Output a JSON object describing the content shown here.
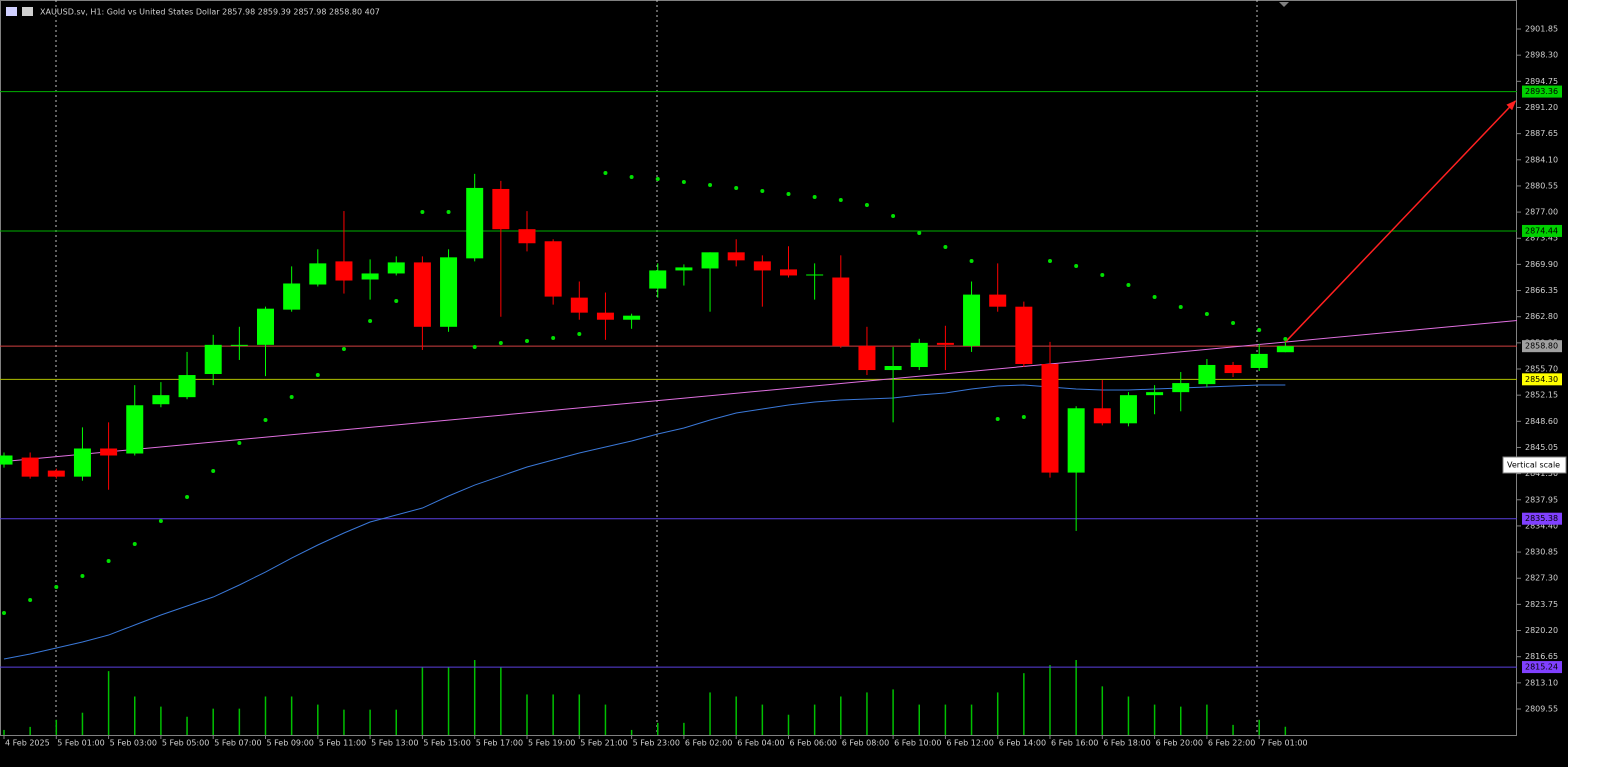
{
  "chart_data": {
    "type": "candlestick",
    "header": "XAUUSD.sv, H1:  Gold vs United States Dollar  2857.98 2859.39 2857.98 2858.80  407",
    "tooltip": "Vertical scale",
    "categories": [
      "4 Feb 2025",
      null,
      "5 Feb 01:00",
      null,
      "5 Feb 03:00",
      null,
      "5 Feb 05:00",
      null,
      "5 Feb 07:00",
      null,
      "5 Feb 09:00",
      null,
      "5 Feb 11:00",
      null,
      "5 Feb 13:00",
      null,
      "5 Feb 15:00",
      null,
      "5 Feb 17:00",
      null,
      "5 Feb 19:00",
      null,
      "5 Feb 21:00",
      null,
      "5 Feb 23:00",
      null,
      "6 Feb 02:00",
      null,
      "6 Feb 04:00",
      null,
      "6 Feb 06:00",
      null,
      "6 Feb 08:00",
      null,
      "6 Feb 10:00",
      null,
      "6 Feb 12:00",
      null,
      "6 Feb 14:00",
      null,
      "6 Feb 16:00",
      null,
      "6 Feb 18:00",
      null,
      "6 Feb 20:00",
      null,
      "6 Feb 22:00",
      null,
      "7 Feb 01:00",
      null
    ],
    "open": [
      2842.73,
      2843.68,
      2841.91,
      2841.09,
      2844.91,
      2844.23,
      2850.92,
      2851.88,
      2855.02,
      2858.98,
      2858.98,
      2863.76,
      2867.17,
      2870.31,
      2867.85,
      2868.67,
      2870.17,
      2861.43,
      2870.72,
      2880.14,
      2874.68,
      2873.04,
      2865.39,
      2863.35,
      2862.39,
      2866.62,
      2869.08,
      2869.35,
      2871.54,
      2870.31,
      2869.22,
      2868.53,
      2868.12,
      2858.84,
      2855.56,
      2855.97,
      2859.25,
      2858.84,
      2865.8,
      2864.16,
      2856.38,
      2841.64,
      2850.37,
      2848.33,
      2852.15,
      2852.56,
      2853.65,
      2856.25,
      2855.84,
      2857.98
    ],
    "high": [
      2844.37,
      2844.37,
      2842.18,
      2847.78,
      2848.46,
      2853.51,
      2853.92,
      2858.02,
      2860.34,
      2861.43,
      2864.16,
      2869.63,
      2871.95,
      2877.14,
      2870.58,
      2870.99,
      2870.99,
      2871.95,
      2882.19,
      2881.23,
      2877.14,
      2873.31,
      2867.58,
      2866.08,
      2863.21,
      2870.04,
      2869.9,
      2871.54,
      2873.31,
      2871.13,
      2872.36,
      2870.04,
      2871.13,
      2861.43,
      2858.7,
      2859.8,
      2861.57,
      2867.58,
      2870.04,
      2864.85,
      2859.39,
      2850.65,
      2854.2,
      2852.56,
      2853.51,
      2855.29,
      2857.06,
      2856.66,
      2859.11,
      2859.39
    ],
    "low": [
      2842.32,
      2840.82,
      2840.82,
      2840.54,
      2839.31,
      2843.96,
      2850.51,
      2851.6,
      2853.51,
      2856.93,
      2854.74,
      2863.48,
      2866.9,
      2865.94,
      2865.12,
      2868.4,
      2858.29,
      2860.75,
      2870.31,
      2862.8,
      2871.67,
      2864.44,
      2862.39,
      2859.66,
      2861.16,
      2865.39,
      2867.03,
      2863.48,
      2869.63,
      2864.16,
      2868.12,
      2865.12,
      2858.57,
      2854.88,
      2848.46,
      2855.56,
      2855.56,
      2858.02,
      2863.48,
      2855.97,
      2840.95,
      2833.72,
      2848.05,
      2847.92,
      2849.56,
      2849.96,
      2853.24,
      2854.61,
      2855.43,
      2857.98
    ],
    "close": [
      2843.96,
      2841.09,
      2841.09,
      2844.91,
      2843.96,
      2850.78,
      2852.15,
      2854.88,
      2858.98,
      2858.98,
      2863.89,
      2867.31,
      2870.04,
      2867.71,
      2868.67,
      2870.17,
      2861.43,
      2870.86,
      2880.28,
      2874.68,
      2872.77,
      2865.53,
      2863.35,
      2862.39,
      2862.94,
      2869.08,
      2869.49,
      2871.54,
      2870.45,
      2869.08,
      2868.4,
      2868.53,
      2858.84,
      2855.56,
      2856.11,
      2859.25,
      2858.98,
      2865.8,
      2864.16,
      2856.38,
      2841.64,
      2850.37,
      2848.33,
      2852.15,
      2852.56,
      2853.79,
      2856.25,
      2855.15,
      2857.75,
      2858.8
    ],
    "volume": [
      250,
      400,
      750,
      1100,
      3150,
      1900,
      1400,
      900,
      1300,
      1300,
      1900,
      1900,
      1500,
      1250,
      1250,
      1250,
      3350,
      3350,
      3700,
      3350,
      2000,
      2000,
      2000,
      1500,
      250,
      600,
      600,
      2100,
      1900,
      1500,
      1000,
      1500,
      1900,
      2100,
      2250,
      1500,
      1500,
      1500,
      2100,
      3050,
      3450,
      3700,
      2400,
      1900,
      1500,
      1400,
      1500,
      500,
      750,
      407
    ],
    "ma": [
      2816.33,
      2817.01,
      2817.83,
      2818.64,
      2819.59,
      2820.95,
      2822.31,
      2823.53,
      2824.75,
      2826.38,
      2828.14,
      2830.04,
      2831.81,
      2833.44,
      2834.93,
      2835.88,
      2836.83,
      2838.46,
      2839.95,
      2841.17,
      2842.4,
      2843.35,
      2844.3,
      2845.11,
      2845.93,
      2846.88,
      2847.69,
      2848.78,
      2849.73,
      2850.27,
      2850.81,
      2851.22,
      2851.49,
      2851.63,
      2851.76,
      2852.17,
      2852.44,
      2852.98,
      2853.39,
      2853.53,
      2853.26,
      2852.98,
      2852.85,
      2852.85,
      2852.98,
      2853.12,
      2853.26,
      2853.39,
      2853.53,
      2853.53
    ],
    "sar": [
      2822.58,
      2824.34,
      2826.11,
      2827.6,
      2829.64,
      2831.94,
      2835.07,
      2838.32,
      2841.85,
      2845.65,
      2848.78,
      2851.9,
      2854.88,
      2858.41,
      2862.21,
      2864.93,
      2877.01,
      2877.01,
      2858.68,
      2859.23,
      2859.5,
      2859.91,
      2860.45,
      2882.3,
      2881.76,
      2881.49,
      2881.08,
      2880.67,
      2880.27,
      2879.86,
      2879.45,
      2879.05,
      2878.64,
      2877.96,
      2876.47,
      2874.16,
      2872.26,
      2870.36,
      2848.91,
      2849.18,
      2870.36,
      2869.68,
      2868.46,
      2867.1,
      2865.47,
      2864.11,
      2863.16,
      2861.94,
      2860.99,
      2859.77
    ],
    "up_color": "#00ff00",
    "down_color": "#ff0000",
    "volume_color": "#00c000",
    "ma_color": "#3a78d8",
    "sar_color": "#00e000",
    "levels": [
      {
        "value": 2893.36,
        "label": "2893.36",
        "color": "#00b000",
        "tag_color": "#00d000"
      },
      {
        "value": 2874.44,
        "label": "2874.44",
        "color": "#00b000",
        "tag_color": "#00d000"
      },
      {
        "value": 2858.8,
        "label": "2858.80",
        "color": "#d04040",
        "tag_color": "#a0a0a0"
      },
      {
        "value": 2854.3,
        "label": "2854.30",
        "color": "#b0c000",
        "tag_color": "#ffff00"
      },
      {
        "value": 2835.38,
        "label": "2835.38",
        "color": "#5a40e0",
        "tag_color": "#8040ff"
      },
      {
        "value": 2815.24,
        "label": "2815.24",
        "color": "#5a40e0",
        "tag_color": "#8040ff"
      }
    ],
    "trendlines": [
      {
        "points": [
          {
            "x": 0,
            "y": 2843.14
          },
          {
            "x": 49,
            "y": 2859.36
          }
        ],
        "color": "#e070e0",
        "ray": true
      },
      {
        "points": [
          {
            "x": 49,
            "y": 2859.36
          },
          {
            "x": 57.8,
            "y": 2892.08
          }
        ],
        "color": "#ff2020",
        "arrow": true
      }
    ],
    "ylim": [
      2806.02,
      2905.79
    ],
    "yticks": [
      2901.85,
      {
        "value": 2898.3,
        "label": "2898.30"
      },
      2894.75,
      {
        "value": 2891.2,
        "label": "2891.20"
      },
      2887.65,
      {
        "value": 2884.1,
        "label": "2884.10"
      },
      2880.55,
      {
        "value": 2877,
        "label": "2877.00"
      },
      2873.45,
      {
        "value": 2869.9,
        "label": "2869.90"
      },
      2866.35,
      {
        "value": 2862.8,
        "label": "2862.80"
      },
      2859.25,
      {
        "value": 2855.7,
        "label": "2855.70"
      },
      2852.15,
      {
        "value": 2848.6,
        "label": "2848.60"
      },
      2845.05,
      {
        "value": 2841.5,
        "label": "2841.50"
      },
      2837.95,
      {
        "value": 2834.4,
        "label": "2834.40"
      },
      2830.85,
      {
        "value": 2827.3,
        "label": "2827.30"
      },
      2823.75,
      {
        "value": 2820.2,
        "label": "2820.20"
      },
      2816.65,
      {
        "value": 2813.1,
        "label": "2813.10"
      },
      2809.55
    ]
  }
}
